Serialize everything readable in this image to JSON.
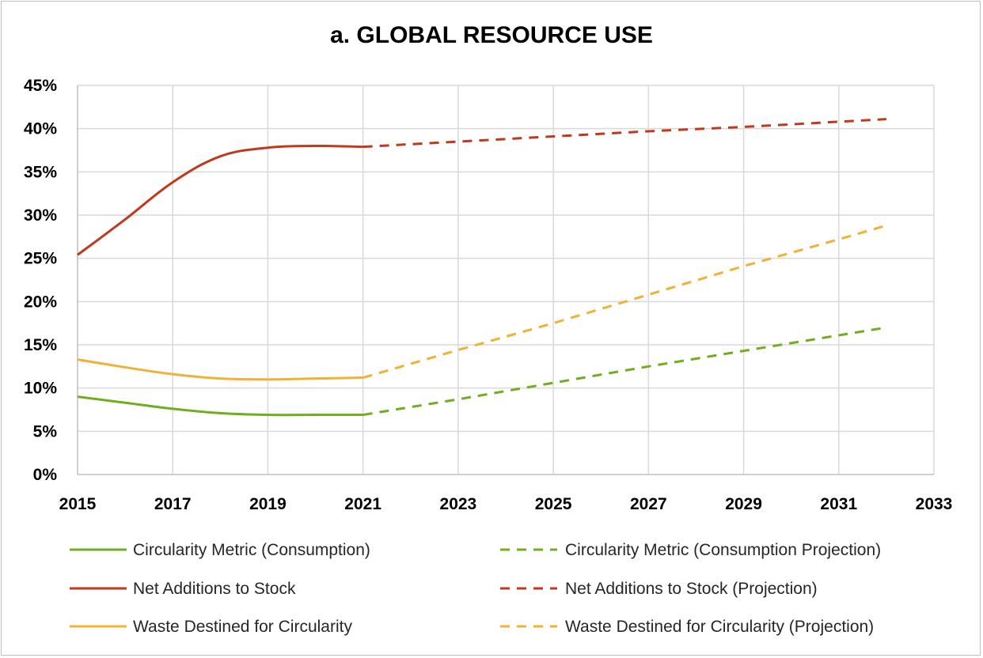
{
  "chart_data": {
    "type": "line",
    "title": "a. GLOBAL RESOURCE USE",
    "xlabel": "",
    "ylabel": "",
    "xlim": [
      2015,
      2033
    ],
    "ylim": [
      0,
      45
    ],
    "x_ticks": [
      "2015",
      "2017",
      "2019",
      "2021",
      "2023",
      "2025",
      "2027",
      "2029",
      "2031",
      "2033"
    ],
    "y_ticks": [
      "0%",
      "5%",
      "10%",
      "15%",
      "20%",
      "25%",
      "30%",
      "35%",
      "40%",
      "45%"
    ],
    "grid": true,
    "legend_position": "bottom",
    "series": [
      {
        "name": "Circularity Metric (Consumption)",
        "color": "#70ad1f",
        "style": "solid",
        "points": [
          [
            2015,
            9.0
          ],
          [
            2016,
            8.3
          ],
          [
            2017,
            7.6
          ],
          [
            2018,
            7.1
          ],
          [
            2019,
            6.9
          ],
          [
            2020,
            6.9
          ],
          [
            2021,
            6.9
          ]
        ]
      },
      {
        "name": "Circularity Metric (Consumption Projection)",
        "color": "#70ad1f",
        "style": "dashed",
        "points": [
          [
            2021,
            6.9
          ],
          [
            2023,
            8.7
          ],
          [
            2025,
            10.6
          ],
          [
            2027,
            12.5
          ],
          [
            2029,
            14.3
          ],
          [
            2031,
            16.1
          ],
          [
            2032,
            17.0
          ]
        ]
      },
      {
        "name": "Net Additions to Stock",
        "color": "#c0391c",
        "style": "solid",
        "points": [
          [
            2015,
            25.4
          ],
          [
            2016,
            29.5
          ],
          [
            2017,
            33.8
          ],
          [
            2018,
            36.8
          ],
          [
            2019,
            37.8
          ],
          [
            2020,
            38.0
          ],
          [
            2021,
            37.9
          ]
        ]
      },
      {
        "name": "Net Additions to Stock (Projection)",
        "color": "#c0391c",
        "style": "dashed",
        "points": [
          [
            2021,
            37.9
          ],
          [
            2023,
            38.5
          ],
          [
            2025,
            39.1
          ],
          [
            2027,
            39.7
          ],
          [
            2029,
            40.2
          ],
          [
            2031,
            40.8
          ],
          [
            2032,
            41.1
          ]
        ]
      },
      {
        "name": "Waste Destined for Circularity",
        "color": "#efb136",
        "style": "solid",
        "points": [
          [
            2015,
            13.3
          ],
          [
            2016,
            12.4
          ],
          [
            2017,
            11.6
          ],
          [
            2018,
            11.1
          ],
          [
            2019,
            11.0
          ],
          [
            2020,
            11.1
          ],
          [
            2021,
            11.2
          ]
        ]
      },
      {
        "name": "Waste Destined for Circularity (Projection)",
        "color": "#efb136",
        "style": "dashed",
        "points": [
          [
            2021,
            11.2
          ],
          [
            2023,
            14.4
          ],
          [
            2025,
            17.5
          ],
          [
            2027,
            20.8
          ],
          [
            2029,
            24.1
          ],
          [
            2031,
            27.2
          ],
          [
            2032,
            28.8
          ]
        ]
      }
    ]
  },
  "legend": {
    "items": [
      {
        "label": "Circularity Metric (Consumption)",
        "color": "#70ad1f",
        "style": "solid"
      },
      {
        "label": "Circularity Metric (Consumption Projection)",
        "color": "#70ad1f",
        "style": "dashed"
      },
      {
        "label": "Net Additions to Stock",
        "color": "#c0391c",
        "style": "solid"
      },
      {
        "label": "Net Additions to Stock (Projection)",
        "color": "#c0391c",
        "style": "dashed"
      },
      {
        "label": "Waste Destined for Circularity",
        "color": "#efb136",
        "style": "solid"
      },
      {
        "label": "Waste Destined for Circularity (Projection)",
        "color": "#efb136",
        "style": "dashed"
      }
    ]
  }
}
